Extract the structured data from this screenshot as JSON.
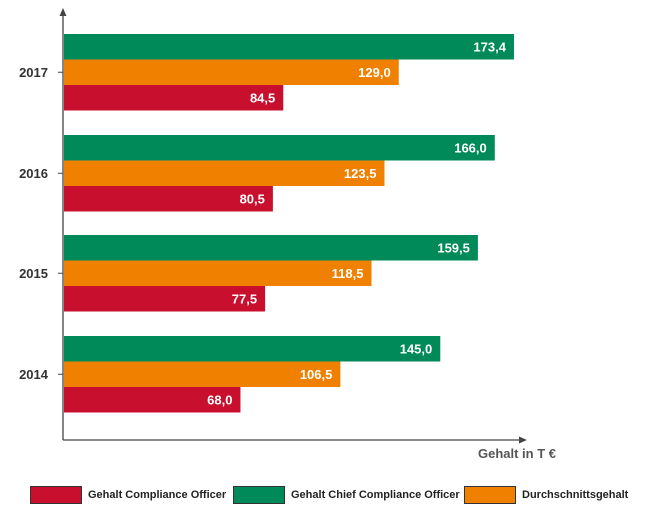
{
  "chart_data": {
    "type": "bar",
    "orientation": "horizontal",
    "categories": [
      "2017",
      "2016",
      "2015",
      "2014"
    ],
    "series": [
      {
        "name": "Gehalt Chief Compliance Officer",
        "color": "#008a5a",
        "values": [
          173.4,
          166.0,
          159.5,
          145.0
        ],
        "labels": [
          "173,4",
          "166,0",
          "159,5",
          "145,0"
        ]
      },
      {
        "name": "Durchschnittsgehalt",
        "color": "#f08000",
        "values": [
          129.0,
          123.5,
          118.5,
          106.5
        ],
        "labels": [
          "129,0",
          "123,5",
          "118,5",
          "106,5"
        ]
      },
      {
        "name": "Gehalt Compliance Officer",
        "color": "#c8102e",
        "values": [
          84.5,
          80.5,
          77.5,
          68.0
        ],
        "labels": [
          "84,5",
          "80,5",
          "77,5",
          "68,0"
        ]
      }
    ],
    "xlabel": "Gehalt in T €",
    "xlim": [
      0,
      180
    ],
    "grid": false,
    "legend_position": "bottom"
  },
  "legend": [
    {
      "label": "Gehalt Compliance Officer",
      "color": "#c8102e"
    },
    {
      "label": "Gehalt Chief Compliance Officer",
      "color": "#008a5a"
    },
    {
      "label": "Durchschnittsgehalt",
      "color": "#f08000"
    }
  ]
}
